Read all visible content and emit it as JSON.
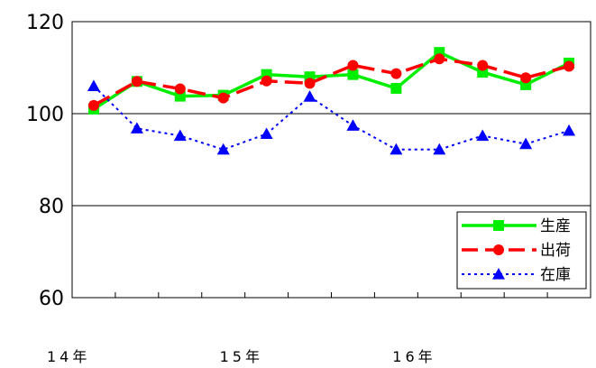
{
  "chart_data": {
    "type": "line",
    "title": "",
    "xlabel": "",
    "ylabel": "",
    "ylim": [
      60,
      120
    ],
    "yticks": [
      60,
      80,
      100,
      120
    ],
    "grid": "horizontal",
    "legend_position": "bottom-right",
    "x_group_labels": [
      {
        "label": "14年",
        "index": 0
      },
      {
        "label": "15年",
        "index": 4
      },
      {
        "label": "16年",
        "index": 8
      }
    ],
    "series": [
      {
        "name": "生産",
        "color": "#00ee00",
        "line_style": "solid",
        "marker": "square",
        "values": [
          101.0,
          107.0,
          103.8,
          104.0,
          108.5,
          108.0,
          108.5,
          105.5,
          113.3,
          109.0,
          106.3,
          111.0
        ]
      },
      {
        "name": "出荷",
        "color": "#ff0000",
        "line_style": "dashed",
        "marker": "circle",
        "values": [
          101.8,
          107.0,
          105.4,
          103.4,
          107.1,
          106.6,
          110.5,
          108.7,
          111.9,
          110.5,
          107.8,
          110.3
        ]
      },
      {
        "name": "在庫",
        "color": "#0000ff",
        "line_style": "dotted",
        "marker": "triangle",
        "values": [
          106.0,
          96.8,
          95.2,
          92.2,
          95.6,
          103.7,
          97.4,
          92.2,
          92.2,
          95.2,
          93.4,
          96.3
        ]
      }
    ]
  }
}
